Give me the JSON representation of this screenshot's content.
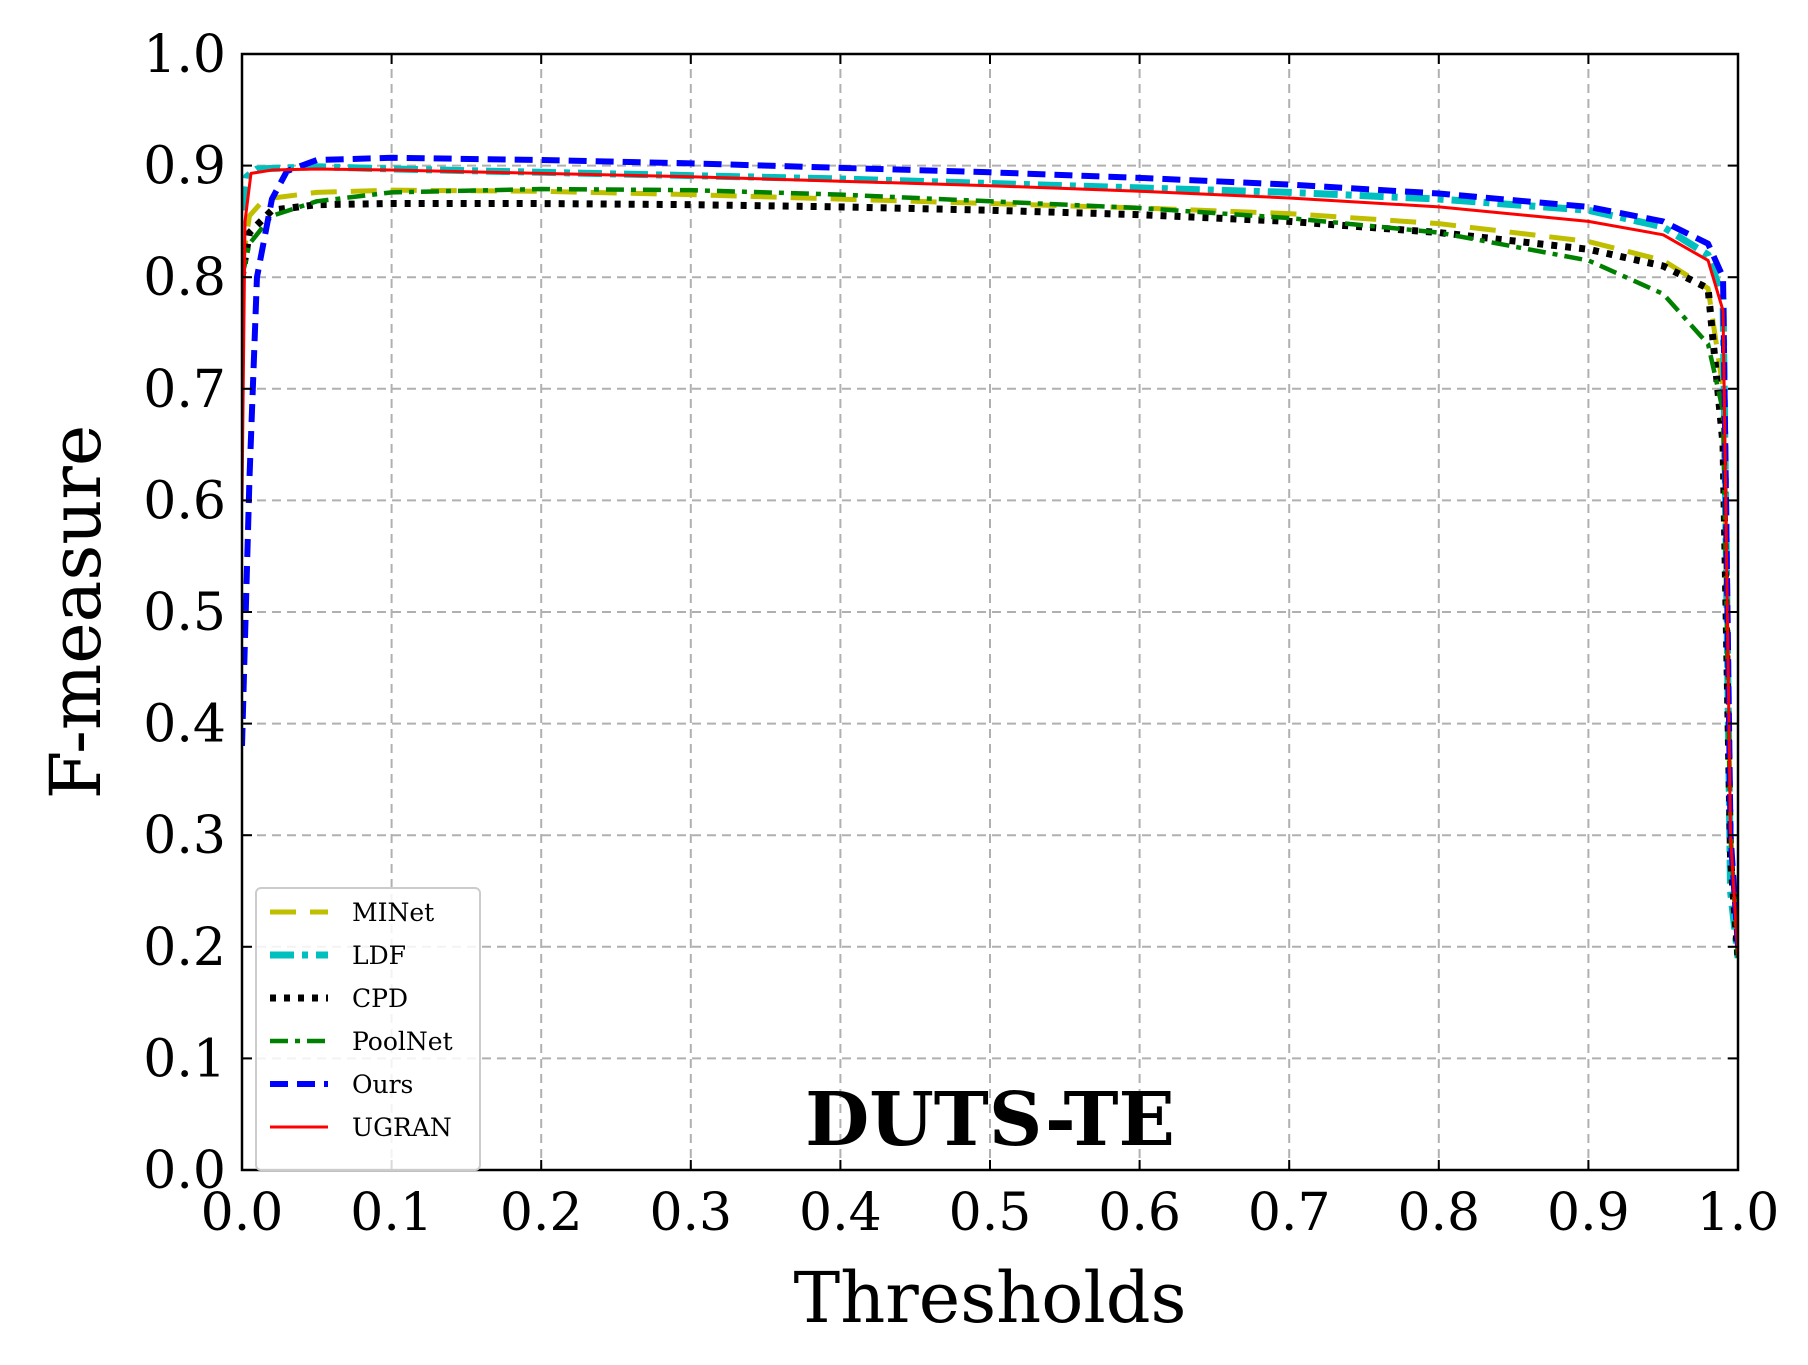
{
  "chart_data": {
    "type": "line",
    "title": "",
    "xlabel": "Thresholds",
    "ylabel": "F-measure",
    "annotation": "DUTS-TE",
    "xlim": [
      0.0,
      1.0
    ],
    "ylim": [
      0.0,
      1.0
    ],
    "xticks": [
      "0.0",
      "0.1",
      "0.2",
      "0.3",
      "0.4",
      "0.5",
      "0.6",
      "0.7",
      "0.8",
      "0.9",
      "1.0"
    ],
    "yticks": [
      "0.0",
      "0.1",
      "0.2",
      "0.3",
      "0.4",
      "0.5",
      "0.6",
      "0.7",
      "0.8",
      "0.9",
      "1.0"
    ],
    "grid": true,
    "legend_position": "lower-left",
    "series": [
      {
        "name": "MINet",
        "color": "#bfbf00",
        "style": "long-dash",
        "x": [
          0.0,
          0.005,
          0.015,
          0.05,
          0.1,
          0.2,
          0.3,
          0.4,
          0.5,
          0.6,
          0.7,
          0.8,
          0.9,
          0.95,
          0.98,
          0.99,
          0.995,
          1.0
        ],
        "y": [
          0.81,
          0.855,
          0.87,
          0.876,
          0.878,
          0.877,
          0.874,
          0.87,
          0.866,
          0.862,
          0.857,
          0.848,
          0.832,
          0.815,
          0.79,
          0.7,
          0.3,
          0.19
        ]
      },
      {
        "name": "LDF",
        "color": "#00bfbf",
        "style": "dash-dot",
        "x": [
          0.0,
          0.003,
          0.01,
          0.05,
          0.1,
          0.2,
          0.3,
          0.4,
          0.5,
          0.6,
          0.7,
          0.8,
          0.9,
          0.95,
          0.98,
          0.99,
          0.995,
          1.0
        ],
        "y": [
          0.86,
          0.89,
          0.897,
          0.899,
          0.897,
          0.894,
          0.891,
          0.888,
          0.884,
          0.88,
          0.876,
          0.87,
          0.86,
          0.845,
          0.82,
          0.78,
          0.25,
          0.19
        ]
      },
      {
        "name": "CPD",
        "color": "#000000",
        "style": "dotted",
        "x": [
          0.0,
          0.005,
          0.02,
          0.05,
          0.1,
          0.2,
          0.3,
          0.4,
          0.5,
          0.6,
          0.7,
          0.8,
          0.9,
          0.95,
          0.98,
          0.99,
          0.995,
          1.0
        ],
        "y": [
          0.8,
          0.84,
          0.86,
          0.865,
          0.866,
          0.866,
          0.865,
          0.863,
          0.86,
          0.856,
          0.85,
          0.84,
          0.825,
          0.81,
          0.79,
          0.65,
          0.28,
          0.19
        ]
      },
      {
        "name": "PoolNet",
        "color": "#008000",
        "style": "dash-dot",
        "x": [
          0.0,
          0.005,
          0.02,
          0.05,
          0.1,
          0.2,
          0.3,
          0.4,
          0.5,
          0.6,
          0.7,
          0.8,
          0.9,
          0.95,
          0.98,
          0.99,
          0.995,
          1.0
        ],
        "y": [
          0.8,
          0.83,
          0.855,
          0.868,
          0.876,
          0.879,
          0.878,
          0.874,
          0.868,
          0.862,
          0.853,
          0.84,
          0.815,
          0.785,
          0.74,
          0.68,
          0.3,
          0.19
        ]
      },
      {
        "name": "Ours",
        "color": "#0000ff",
        "style": "dashed",
        "x": [
          0.0,
          0.005,
          0.01,
          0.02,
          0.03,
          0.05,
          0.1,
          0.2,
          0.3,
          0.4,
          0.5,
          0.6,
          0.7,
          0.8,
          0.9,
          0.95,
          0.98,
          0.99,
          0.995,
          1.0
        ],
        "y": [
          0.38,
          0.62,
          0.8,
          0.87,
          0.895,
          0.905,
          0.907,
          0.905,
          0.902,
          0.898,
          0.894,
          0.889,
          0.883,
          0.875,
          0.863,
          0.85,
          0.83,
          0.8,
          0.3,
          0.2
        ]
      },
      {
        "name": "UGRAN",
        "color": "#ff0000",
        "style": "solid",
        "x": [
          0.0,
          0.002,
          0.006,
          0.02,
          0.05,
          0.1,
          0.2,
          0.3,
          0.4,
          0.5,
          0.6,
          0.7,
          0.8,
          0.9,
          0.95,
          0.98,
          0.99,
          0.995,
          1.0
        ],
        "y": [
          0.6,
          0.85,
          0.893,
          0.896,
          0.897,
          0.896,
          0.893,
          0.89,
          0.886,
          0.882,
          0.877,
          0.871,
          0.863,
          0.85,
          0.838,
          0.815,
          0.77,
          0.3,
          0.19
        ]
      }
    ]
  }
}
